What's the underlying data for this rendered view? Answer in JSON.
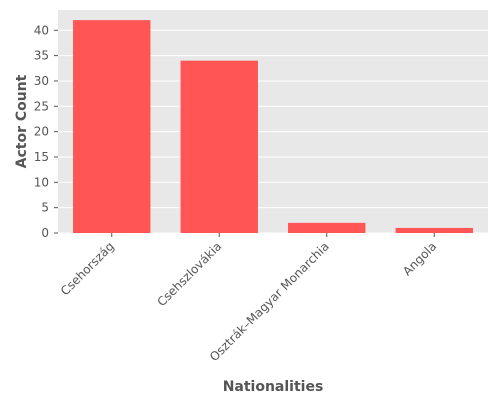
{
  "chart_data": {
    "type": "bar",
    "title": "",
    "xlabel": "Nationalities",
    "ylabel": "Actor Count",
    "categories": [
      "Csehország",
      "Csehszlovákia",
      "Osztrák–Magyar Monarchia",
      "Angola"
    ],
    "values": [
      42,
      34,
      2,
      1
    ],
    "ylim": [
      0,
      44
    ],
    "yticks": [
      0,
      5,
      10,
      15,
      20,
      25,
      30,
      35,
      40
    ],
    "grid": true,
    "legend": "none",
    "colors": {
      "bar": "#ff5555",
      "background": "#e8e8e8",
      "grid": "#ffffff",
      "text": "#555555"
    }
  }
}
